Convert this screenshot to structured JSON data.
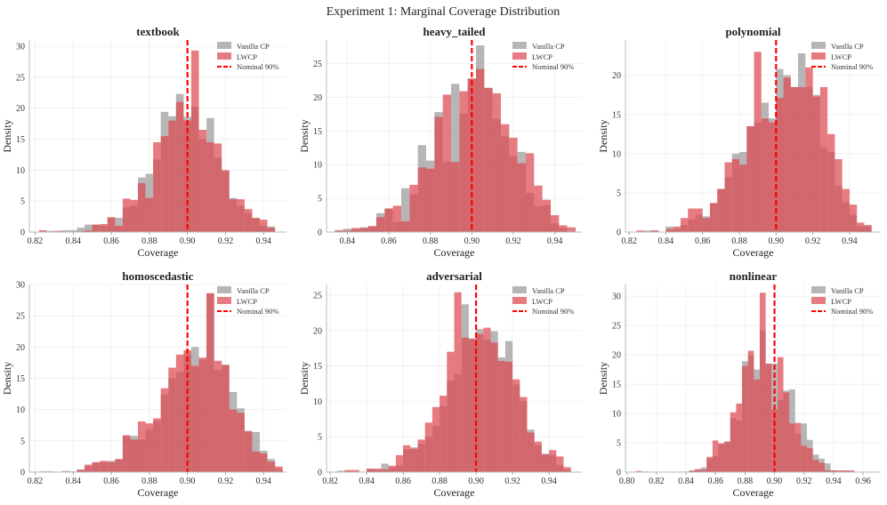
{
  "figure_title": "Experiment 1: Marginal Coverage Distribution",
  "colors": {
    "vanilla": "#9a9a9a",
    "lwcp": "#dc4a50",
    "nominal": "#ff0000"
  },
  "legend": {
    "vanilla": "Vanilla CP",
    "lwcp": "LWCP",
    "nominal": "Nominal 90%"
  },
  "chart_data": [
    {
      "type": "histogram",
      "title": "textbook",
      "xlabel": "Coverage",
      "ylabel": "Density",
      "grid": true,
      "legend_position": "top-right",
      "xlim": [
        0.817,
        0.952
      ],
      "ylim": [
        0,
        31
      ],
      "xticks": [
        "0.82",
        "0.84",
        "0.86",
        "0.88",
        "0.90",
        "0.92",
        "0.94"
      ],
      "yticks": [
        "0",
        "5",
        "10",
        "15",
        "20",
        "25",
        "30"
      ],
      "nominal": 0.9,
      "bin_start": 0.822,
      "bin_width": 0.004,
      "series": [
        {
          "name": "Vanilla CP",
          "values": [
            0,
            0.2,
            0.1,
            0.3,
            0.3,
            0.7,
            1.2,
            1.2,
            1.0,
            2.3,
            2.3,
            4,
            4.3,
            8.8,
            9.4,
            11.7,
            19.4,
            18.7,
            22.3,
            18.6,
            20.2,
            15,
            18.4,
            12,
            9.8,
            5.5,
            4.2,
            3.0,
            2.2,
            1.0,
            0.9,
            0
          ]
        },
        {
          "name": "LWCP",
          "values": [
            0.3,
            0,
            0.2,
            0,
            0,
            0.1,
            0.3,
            1.2,
            1.3,
            2.4,
            1.0,
            5.4,
            5.2,
            7.9,
            5.5,
            14.5,
            15.5,
            18,
            21,
            18,
            29.3,
            16.5,
            14.5,
            14.3,
            10,
            5.3,
            5.3,
            3.7,
            2.3,
            2.0,
            0.7,
            0
          ]
        }
      ]
    },
    {
      "type": "histogram",
      "title": "heavy_tailed",
      "xlabel": "Coverage",
      "ylabel": "Density",
      "grid": true,
      "legend_position": "top-right",
      "xlim": [
        0.83,
        0.953
      ],
      "ylim": [
        0,
        28.5
      ],
      "xticks": [
        "0.84",
        "0.86",
        "0.88",
        "0.90",
        "0.92",
        "0.94"
      ],
      "yticks": [
        "0",
        "5",
        "10",
        "15",
        "20",
        "25"
      ],
      "nominal": 0.9,
      "bin_start": 0.834,
      "bin_width": 0.004,
      "series": [
        {
          "name": "Vanilla CP",
          "values": [
            0.3,
            0.5,
            0.4,
            0.7,
            0.8,
            2.8,
            3.5,
            1.5,
            6.5,
            5.6,
            12.9,
            10.6,
            17.8,
            10.4,
            22,
            17.6,
            22.7,
            27.7,
            21.4,
            16.8,
            14.2,
            11.3,
            11.9,
            5.8,
            3.8,
            4,
            1.3,
            0.6,
            0
          ]
        },
        {
          "name": "LWCP",
          "values": [
            0.2,
            0.2,
            0.6,
            0.6,
            0.9,
            2.2,
            3.5,
            3.9,
            1.6,
            7.0,
            9.6,
            9.4,
            17.1,
            20.4,
            10.4,
            20.9,
            22.8,
            24.2,
            21.4,
            20.6,
            16,
            14,
            10.2,
            11.7,
            6.9,
            4.8,
            2.5,
            1.0,
            0.7
          ]
        }
      ]
    },
    {
      "type": "histogram",
      "title": "polynomial",
      "xlabel": "Coverage",
      "ylabel": "Density",
      "grid": true,
      "legend_position": "top-right",
      "xlim": [
        0.818,
        0.957
      ],
      "ylim": [
        0,
        24.5
      ],
      "xticks": [
        "0.82",
        "0.84",
        "0.86",
        "0.88",
        "0.90",
        "0.92",
        "0.94"
      ],
      "yticks": [
        "0",
        "5",
        "10",
        "15",
        "20"
      ],
      "nominal": 0.9,
      "bin_start": 0.824,
      "bin_width": 0.004,
      "series": [
        {
          "name": "Vanilla CP",
          "values": [
            0,
            0.2,
            0.2,
            0,
            0.7,
            0.4,
            0.9,
            1.6,
            2.2,
            2.0,
            3.7,
            5.5,
            7.0,
            10,
            10.2,
            13.5,
            14,
            16.5,
            14.5,
            20.8,
            20,
            18.5,
            22.8,
            18.5,
            17.5,
            10.8,
            10.2,
            5.9,
            3.8,
            2.2,
            0.7,
            0.7
          ]
        },
        {
          "name": "LWCP",
          "values": [
            0.2,
            0,
            0.2,
            0,
            0.4,
            0.7,
            1.8,
            3,
            3,
            1.8,
            3.7,
            5.5,
            8.9,
            9.3,
            8.6,
            13.5,
            23,
            14.5,
            14,
            17.1,
            19.7,
            18.5,
            18.5,
            21,
            17.3,
            18.5,
            12.5,
            9.3,
            5.5,
            3.5,
            1.2,
            0.9
          ]
        }
      ]
    },
    {
      "type": "histogram",
      "title": "homoscedastic",
      "xlabel": "Coverage",
      "ylabel": "Density",
      "grid": true,
      "legend_position": "top-right",
      "xlim": [
        0.817,
        0.952
      ],
      "ylim": [
        0,
        30
      ],
      "xticks": [
        "0.82",
        "0.84",
        "0.86",
        "0.88",
        "0.90",
        "0.92",
        "0.94"
      ],
      "yticks": [
        "0",
        "5",
        "10",
        "15",
        "20",
        "25",
        "30"
      ],
      "nominal": 0.9,
      "bin_start": 0.822,
      "bin_width": 0.004,
      "series": [
        {
          "name": "Vanilla CP",
          "values": [
            0.1,
            0.1,
            0,
            0.2,
            0,
            0.4,
            0.9,
            1.5,
            1.6,
            1.8,
            2.0,
            5.8,
            5.8,
            5.2,
            6.8,
            8.2,
            12.4,
            15,
            16,
            18.8,
            20,
            18,
            28.6,
            16.3,
            17.2,
            12.8,
            10.2,
            6.6,
            6.4,
            3.4,
            2.1,
            0.5
          ]
        },
        {
          "name": "LWCP",
          "values": [
            0.1,
            0.1,
            0,
            0,
            0.1,
            0.4,
            1.2,
            1.6,
            1.8,
            1.6,
            2.1,
            5.9,
            5.2,
            8.1,
            7.8,
            8.6,
            13.4,
            16.7,
            18.8,
            19.5,
            17,
            18.3,
            28.6,
            17.8,
            17.1,
            10,
            9.5,
            6.5,
            3.3,
            3.0,
            1.7,
            0.9
          ]
        }
      ]
    },
    {
      "type": "histogram",
      "title": "adversarial",
      "xlabel": "Coverage",
      "ylabel": "Density",
      "grid": true,
      "legend_position": "top-right",
      "xlim": [
        0.818,
        0.958
      ],
      "ylim": [
        0,
        26.5
      ],
      "xticks": [
        "0.82",
        "0.84",
        "0.86",
        "0.88",
        "0.90",
        "0.92",
        "0.94"
      ],
      "yticks": [
        "0",
        "5",
        "10",
        "15",
        "20",
        "25"
      ],
      "nominal": 0.9,
      "bin_start": 0.824,
      "bin_width": 0.004,
      "series": [
        {
          "name": "Vanilla CP",
          "values": [
            0.2,
            0.1,
            0,
            0,
            0.4,
            0.3,
            1.2,
            0.6,
            0.9,
            3.2,
            3.5,
            4.0,
            5.0,
            6.5,
            9.3,
            12.9,
            13.8,
            23.7,
            18.9,
            20.2,
            18.7,
            19.9,
            16.2,
            18.5,
            12.4,
            10,
            6.0,
            3.8,
            2.6,
            2.4,
            1.0,
            0.3
          ]
        },
        {
          "name": "LWCP",
          "values": [
            0,
            0.3,
            0.3,
            0,
            0.5,
            0.5,
            0.4,
            0.9,
            2.4,
            3.8,
            3.3,
            4.6,
            7.0,
            9.2,
            10.8,
            17,
            25.4,
            19.0,
            18.8,
            19.5,
            20.4,
            18.3,
            15.7,
            15.6,
            13.1,
            10.6,
            5.6,
            4.3,
            2.5,
            3.1,
            2.2,
            0.7
          ]
        }
      ]
    },
    {
      "type": "histogram",
      "title": "nonlinear",
      "xlabel": "Coverage",
      "ylabel": "Density",
      "grid": true,
      "legend_position": "top-right",
      "xlim": [
        0.799,
        0.972
      ],
      "ylim": [
        0,
        32
      ],
      "xticks": [
        "0.80",
        "0.82",
        "0.84",
        "0.86",
        "0.88",
        "0.90",
        "0.92",
        "0.94",
        "0.96"
      ],
      "yticks": [
        "0",
        "5",
        "10",
        "15",
        "20",
        "25",
        "30"
      ],
      "nominal": 0.9,
      "bin_start": 0.806,
      "bin_width": 0.004,
      "series": [
        {
          "name": "Vanilla CP",
          "values": [
            0,
            0,
            0,
            0,
            0,
            0,
            0,
            0,
            0,
            0.3,
            0.4,
            0.8,
            2.3,
            2.7,
            4.8,
            5.2,
            9.2,
            8.8,
            18.9,
            19.9,
            17.5,
            24.1,
            18.5,
            18.5,
            12.3,
            13.9,
            14.1,
            6.6,
            8.3,
            5.5,
            3.0,
            2.3,
            1.5,
            0.3,
            0.1,
            0.2,
            0,
            0,
            0,
            0
          ]
        },
        {
          "name": "LWCP",
          "values": [
            0.2,
            0.1,
            0,
            0,
            0,
            0,
            0,
            0,
            0.1,
            0.2,
            0.5,
            0.4,
            2.6,
            5.4,
            4.9,
            5.2,
            10.2,
            11.7,
            18.1,
            20.7,
            15.8,
            30.6,
            18.5,
            10.7,
            19.6,
            13.6,
            8.3,
            8.4,
            4.5,
            4.1,
            2.1,
            1.6,
            0.3,
            0.3,
            0.3,
            0.3,
            0.3,
            0,
            0,
            0
          ]
        }
      ]
    }
  ]
}
